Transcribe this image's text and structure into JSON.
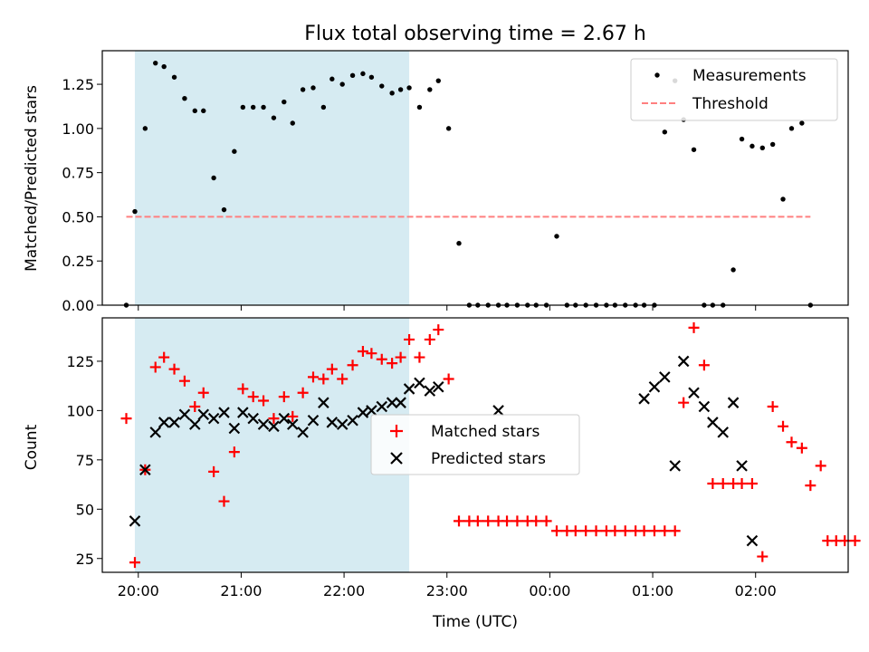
{
  "chart_data": [
    {
      "type": "scatter",
      "title": "Flux total observing time = 2.67 h",
      "ylabel": "Matched/Predicted stars",
      "ylim": [
        0,
        1.44
      ],
      "yticks": [
        "0.00",
        "0.25",
        "0.50",
        "0.75",
        "1.00",
        "1.25"
      ],
      "shaded_interval": [
        "19:58",
        "22:38"
      ],
      "legend_position": "upper right",
      "series": [
        {
          "name": "Measurements",
          "color": "#000000",
          "marker": "dot",
          "x": [
            "19:53",
            "19:58",
            "20:04",
            "20:10",
            "20:15",
            "20:21",
            "20:27",
            "20:33",
            "20:38",
            "20:44",
            "20:50",
            "20:56",
            "21:01",
            "21:07",
            "21:13",
            "21:19",
            "21:25",
            "21:30",
            "21:36",
            "21:42",
            "21:48",
            "21:53",
            "21:59",
            "22:05",
            "22:11",
            "22:16",
            "22:22",
            "22:28",
            "22:33",
            "22:38",
            "22:44",
            "22:50",
            "22:55",
            "23:01",
            "23:07",
            "23:13",
            "23:18",
            "23:24",
            "23:30",
            "23:35",
            "23:41",
            "23:47",
            "23:52",
            "23:58",
            "00:04",
            "00:10",
            "00:15",
            "00:21",
            "00:27",
            "00:33",
            "00:38",
            "00:44",
            "00:50",
            "00:55",
            "01:01",
            "01:07",
            "01:13",
            "01:18",
            "01:24",
            "01:30",
            "01:35",
            "01:41",
            "01:47",
            "01:52",
            "01:58",
            "02:04",
            "02:10",
            "02:16",
            "02:21",
            "02:27",
            "02:32"
          ],
          "y": [
            0.0,
            0.53,
            1.0,
            1.37,
            1.35,
            1.29,
            1.17,
            1.1,
            1.1,
            0.72,
            0.54,
            0.87,
            1.12,
            1.12,
            1.12,
            1.06,
            1.15,
            1.03,
            1.22,
            1.23,
            1.12,
            1.28,
            1.25,
            1.3,
            1.31,
            1.29,
            1.24,
            1.2,
            1.22,
            1.23,
            1.12,
            1.22,
            1.27,
            1.0,
            0.35,
            0.0,
            0.0,
            0.0,
            0.0,
            0.0,
            0.0,
            0.0,
            0.0,
            0.0,
            0.39,
            0.0,
            0.0,
            0.0,
            0.0,
            0.0,
            0.0,
            0.0,
            0.0,
            0.0,
            0.0,
            0.98,
            1.27,
            1.05,
            0.88,
            0.0,
            0.0,
            0.0,
            0.2,
            0.94,
            0.9,
            0.89,
            0.91,
            0.6,
            1.0,
            1.03,
            0.0
          ]
        },
        {
          "name": "Threshold",
          "color": "#ff7f7f",
          "style": "dashed",
          "x": [
            "19:53",
            "02:32"
          ],
          "y": [
            0.5,
            0.5
          ]
        }
      ]
    },
    {
      "type": "scatter",
      "xlabel": "Time (UTC)",
      "ylabel": "Count",
      "ylim": [
        18,
        147
      ],
      "yticks": [
        "25",
        "50",
        "75",
        "100",
        "125"
      ],
      "xticks": [
        "20:00",
        "21:00",
        "22:00",
        "23:00",
        "00:00",
        "01:00",
        "02:00"
      ],
      "shaded_interval": [
        "19:58",
        "22:38"
      ],
      "legend_position": "center",
      "series": [
        {
          "name": "Matched stars",
          "color": "#ff0000",
          "marker": "plus",
          "x": [
            "19:53",
            "19:58",
            "20:04",
            "20:10",
            "20:15",
            "20:21",
            "20:27",
            "20:33",
            "20:38",
            "20:44",
            "20:50",
            "20:56",
            "21:01",
            "21:07",
            "21:13",
            "21:19",
            "21:25",
            "21:30",
            "21:36",
            "21:42",
            "21:48",
            "21:53",
            "21:59",
            "22:05",
            "22:11",
            "22:16",
            "22:22",
            "22:28",
            "22:33",
            "22:38",
            "22:44",
            "22:50",
            "22:55",
            "23:01",
            "23:07",
            "23:13",
            "23:18",
            "23:24",
            "23:30",
            "23:35",
            "23:41",
            "23:47",
            "23:52",
            "23:58",
            "00:04",
            "00:10",
            "00:15",
            "00:21",
            "00:27",
            "00:33",
            "00:38",
            "00:44",
            "00:50",
            "00:55",
            "01:01",
            "01:07",
            "01:13",
            "01:18",
            "01:24",
            "01:30",
            "01:35",
            "01:41",
            "01:47",
            "01:52",
            "01:58",
            "02:04",
            "02:10",
            "02:16",
            "02:21",
            "02:27",
            "02:32",
            "02:38",
            "02:42",
            "02:47",
            "02:52",
            "02:58"
          ],
          "y": [
            96,
            23,
            70,
            122,
            127,
            121,
            115,
            102,
            109,
            69,
            54,
            79,
            111,
            107,
            105,
            96,
            107,
            97,
            109,
            117,
            116,
            121,
            116,
            123,
            130,
            129,
            126,
            124,
            127,
            136,
            127,
            136,
            141,
            116,
            44,
            44,
            44,
            44,
            44,
            44,
            44,
            44,
            44,
            44,
            39,
            39,
            39,
            39,
            39,
            39,
            39,
            39,
            39,
            39,
            39,
            39,
            39,
            104,
            142,
            123,
            63,
            63,
            63,
            63,
            63,
            26,
            102,
            92,
            84,
            81,
            62,
            72,
            34,
            34,
            34,
            34
          ]
        },
        {
          "name": "Predicted stars",
          "color": "#000000",
          "marker": "x",
          "x": [
            "19:58",
            "20:04",
            "20:10",
            "20:15",
            "20:21",
            "20:27",
            "20:33",
            "20:38",
            "20:44",
            "20:50",
            "20:56",
            "21:01",
            "21:07",
            "21:13",
            "21:19",
            "21:25",
            "21:30",
            "21:36",
            "21:42",
            "21:48",
            "21:53",
            "21:59",
            "22:05",
            "22:11",
            "22:16",
            "22:22",
            "22:28",
            "22:33",
            "22:38",
            "22:44",
            "22:50",
            "22:55",
            "23:30",
            "00:55",
            "01:01",
            "01:07",
            "01:13",
            "01:18",
            "01:24",
            "01:30",
            "01:35",
            "01:41",
            "01:47",
            "01:52",
            "01:58"
          ],
          "y": [
            44,
            70,
            89,
            94,
            94,
            98,
            93,
            98,
            96,
            99,
            91,
            99,
            96,
            93,
            92,
            96,
            93,
            89,
            95,
            104,
            94,
            93,
            95,
            99,
            100,
            102,
            104,
            104,
            111,
            114,
            110,
            112,
            100,
            106,
            112,
            117,
            72,
            125,
            109,
            102,
            94,
            89,
            104,
            72,
            34
          ]
        }
      ]
    }
  ]
}
